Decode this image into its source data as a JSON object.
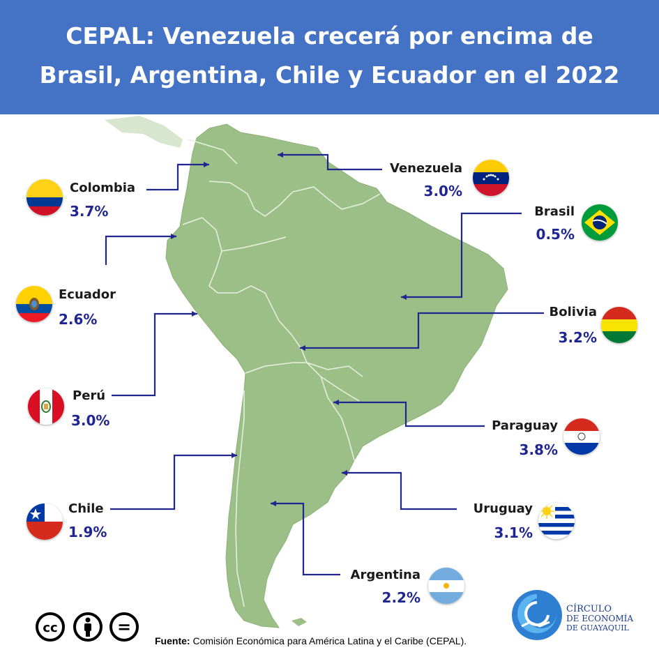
{
  "header": {
    "title_line1": "CEPAL: Venezuela crecerá por encima de",
    "title_line2": "Brasil, Argentina, Chile y Ecuador en el 2022",
    "background": "#4472c4"
  },
  "countries": [
    {
      "name": "Colombia",
      "growth": "3.7%"
    },
    {
      "name": "Venezuela",
      "growth": "3.0%"
    },
    {
      "name": "Brasil",
      "growth": "0.5%"
    },
    {
      "name": "Ecuador",
      "growth": "2.6%"
    },
    {
      "name": "Bolivia",
      "growth": "3.2%"
    },
    {
      "name": "Perú",
      "growth": "3.0%"
    },
    {
      "name": "Paraguay",
      "growth": "3.8%"
    },
    {
      "name": "Chile",
      "growth": "1.9%"
    },
    {
      "name": "Uruguay",
      "growth": "3.1%"
    },
    {
      "name": "Argentina",
      "growth": "2.2%"
    }
  ],
  "footer": {
    "source_label": "Fuente:",
    "source_text": " Comisión Económica para América Latina y el Caribe (CEPAL)."
  },
  "license": {
    "cc": "cc",
    "equals": "="
  },
  "logo": {
    "line1": "CÍRCULO",
    "line2": "DE ECONOMÍA",
    "line3": "DE GUAYAQUIL"
  },
  "colors": {
    "map_fill": "#9cbf88",
    "border": "#e8f0e0",
    "arrow": "#1f2690",
    "value": "#1f2690"
  }
}
